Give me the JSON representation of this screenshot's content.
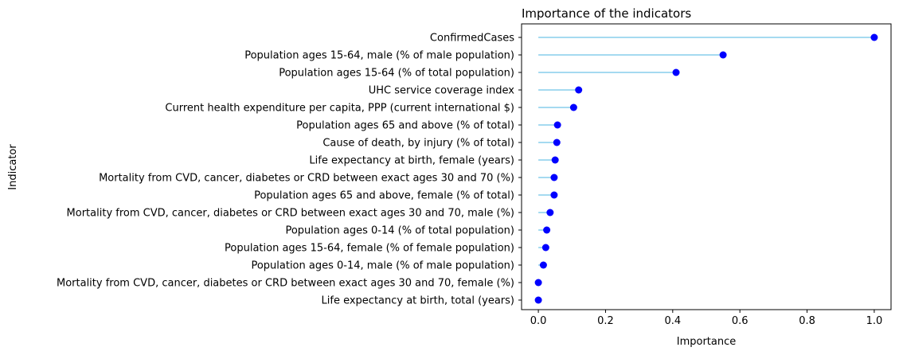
{
  "chart_data": {
    "type": "lollipop",
    "title": "Importance of the indicators",
    "xlabel": "Importance",
    "ylabel": "Indicator",
    "xlim": [
      -0.05,
      1.05
    ],
    "xticks": [
      0.0,
      0.2,
      0.4,
      0.6,
      0.8,
      1.0
    ],
    "xtick_labels": [
      "0.0",
      "0.2",
      "0.4",
      "0.6",
      "0.8",
      "1.0"
    ],
    "grid": false,
    "colors": {
      "stem": "#87ceeb",
      "marker": "#0000ff"
    },
    "categories": [
      "ConfirmedCases",
      "Population ages 15-64, male (% of male population)",
      "Population ages 15-64 (% of total population)",
      "UHC service coverage index",
      "Current health expenditure per capita, PPP (current international $)",
      "Population ages 65 and above (% of total)",
      "Cause of death, by injury (% of total)",
      "Life expectancy at birth, female (years)",
      "Mortality from CVD, cancer, diabetes or CRD between exact ages 30 and 70 (%)",
      "Population ages 65 and above, female (% of total)",
      "Mortality from CVD, cancer, diabetes or CRD between exact ages 30 and 70, male (%)",
      "Population ages 0-14 (% of total population)",
      "Population ages 15-64, female (% of female population)",
      "Population ages 0-14, male (% of male population)",
      "Mortality from CVD, cancer, diabetes or CRD between exact ages 30 and 70, female (%)",
      "Life expectancy at birth, total (years)"
    ],
    "values": [
      1.0,
      0.55,
      0.41,
      0.12,
      0.105,
      0.057,
      0.055,
      0.05,
      0.047,
      0.047,
      0.035,
      0.025,
      0.022,
      0.015,
      0.0,
      0.0
    ]
  }
}
